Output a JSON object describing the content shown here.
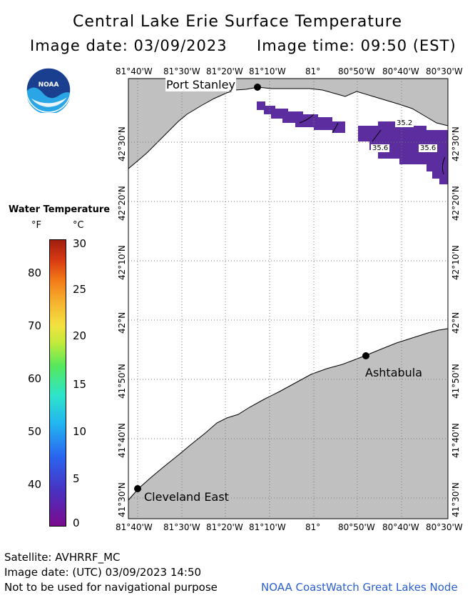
{
  "header": {
    "title": "Central Lake Erie Surface Temperature",
    "image_date": "Image date: 03/09/2023",
    "image_time": "Image time: 09:50 (EST)"
  },
  "logo": {
    "text": "NOAA",
    "icon": "noaa-logo-icon"
  },
  "map": {
    "lon_labels": [
      "81°40'W",
      "81°30'W",
      "81°20'W",
      "81°10'W",
      "81°",
      "80°50'W",
      "80°40'W",
      "80°30'W"
    ],
    "lat_labels": [
      "42°30'N",
      "42°20'N",
      "42°10'N",
      "42°N",
      "41°50'N",
      "41°40'N",
      "41°30'N"
    ],
    "places": {
      "port_stanley": "Port Stanley",
      "ashtabula": "Ashtabula",
      "cleveland_east": "Cleveland East"
    },
    "contour_labels": [
      "35.2",
      "35.6",
      "35.6"
    ],
    "colors": {
      "land": "#c0c0c0",
      "water": "#ffffff",
      "cold_water": "#5b2d9e",
      "grid": "#777777"
    }
  },
  "legend": {
    "title": "Water Temperature",
    "unit_f": "°F",
    "unit_c": "°C",
    "f_labels": [
      "80",
      "70",
      "60",
      "50",
      "40"
    ],
    "c_labels": [
      "30",
      "25",
      "20",
      "15",
      "10",
      "5",
      "0"
    ]
  },
  "footer": {
    "satellite": "Satellite: AVHRRF_MC",
    "utc_date": "Image date: (UTC) 03/09/2023  14:50",
    "disclaimer": "Not to be used for navigational purpose",
    "credit": "NOAA CoastWatch Great Lakes Node"
  }
}
